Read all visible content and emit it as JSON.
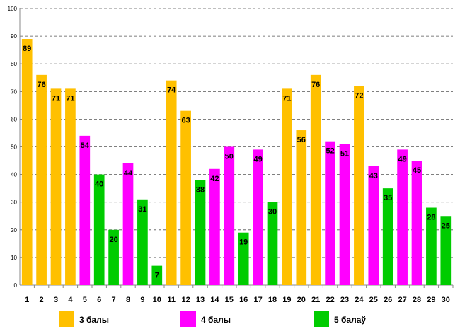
{
  "chart_data": {
    "type": "bar",
    "title": "",
    "xlabel": "",
    "ylabel": "",
    "ylim": [
      0,
      100
    ],
    "yticks": [
      0,
      10,
      20,
      30,
      40,
      50,
      60,
      70,
      80,
      90,
      100
    ],
    "grid": "horizontal-dashed",
    "legend_position": "bottom",
    "categories": [
      "1",
      "2",
      "3",
      "4",
      "5",
      "6",
      "7",
      "8",
      "9",
      "10",
      "11",
      "12",
      "13",
      "14",
      "15",
      "16",
      "17",
      "18",
      "19",
      "20",
      "21",
      "22",
      "23",
      "24",
      "25",
      "26",
      "27",
      "28",
      "29",
      "30"
    ],
    "values": [
      89,
      76,
      71,
      71,
      54,
      40,
      20,
      44,
      31,
      7,
      74,
      63,
      38,
      42,
      50,
      19,
      49,
      30,
      71,
      56,
      76,
      52,
      51,
      72,
      43,
      35,
      49,
      45,
      28,
      25
    ],
    "groups": [
      0,
      0,
      0,
      0,
      1,
      2,
      2,
      1,
      2,
      2,
      0,
      0,
      2,
      1,
      1,
      2,
      1,
      2,
      0,
      0,
      0,
      1,
      1,
      0,
      1,
      2,
      1,
      1,
      2,
      2
    ],
    "series": [
      {
        "name": "3 балы",
        "color": "#FFC000"
      },
      {
        "name": "4 балы",
        "color": "#FF00FF"
      },
      {
        "name": "5 балаў",
        "color": "#00CC00"
      }
    ]
  }
}
